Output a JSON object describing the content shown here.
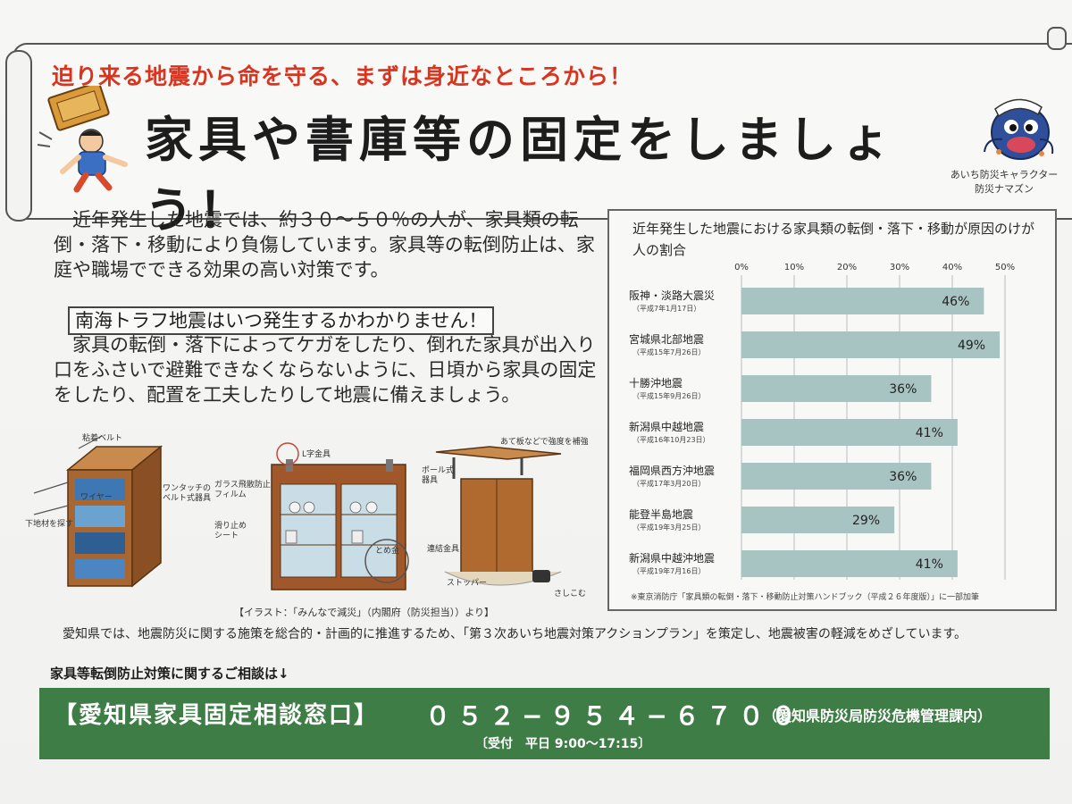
{
  "header": {
    "subtitle": "迫り来る地震から命を守る、まずは身近なところから！",
    "title": "家具や書庫等の固定をしましょう！",
    "mascot_caption_1": "あいち防災キャラクター",
    "mascot_caption_2": "防災ナマズン"
  },
  "body": {
    "para1": "近年発生した地震では、約３０〜５０％の人が、家具類の転倒・落下・移動により負傷しています。家具等の転倒防止は、家庭や職場でできる効果の高い対策です。",
    "boxed": "南海トラフ地震はいつ発生するかわかりません！",
    "para2": "家具の転倒・落下によってケガをしたり、倒れた家具が出入り口をふさいで避難できなくならないように、日頃から家具の固定をしたり、配置を工夫したりして地震に備えましょう。",
    "para3": "愛知県では、地震防災に関する施策を総合的・計画的に推進するため、「第３次あいち地震対策アクションプラン」を策定し、地震被害の軽減をめざしています。",
    "consult": "家具等転倒防止対策に関するご相談は↓"
  },
  "illustration": {
    "caption": "【イラスト：「みんなで減災」（内閣府（防災担当））より】",
    "labels": {
      "belt": "粘着ベルト",
      "wire": "ワイヤー",
      "base": "下地材を探す",
      "onetouch": "ワンタッチの\nベルト式器具",
      "lbracket": "L字金具",
      "glass": "ガラス飛散防止\nフィルム",
      "slip": "滑り止め\nシート",
      "latch": "とめ金",
      "plate": "あて板などで強度を補強",
      "pole": "ポール式\n器具",
      "link": "連結金具",
      "stopper": "ストッパー",
      "insert": "さしこむ"
    }
  },
  "chart_data": {
    "type": "bar",
    "orientation": "horizontal",
    "title": "近年発生した地震における家具類の転倒・落下・移動が原因のけが人の割合",
    "categories": [
      "阪神・淡路大震災",
      "宮城県北部地震",
      "十勝沖地震",
      "新潟県中越地震",
      "福岡県西方沖地震",
      "能登半島地震",
      "新潟県中越沖地震"
    ],
    "subcategories": [
      "（平成7年1月17日）",
      "（平成15年7月26日）",
      "（平成15年9月26日）",
      "（平成16年10月23日）",
      "（平成17年3月20日）",
      "（平成19年3月25日）",
      "（平成19年7月16日）"
    ],
    "values": [
      46,
      49,
      36,
      41,
      36,
      29,
      41
    ],
    "value_labels": [
      "46%",
      "49%",
      "36%",
      "41%",
      "36%",
      "29%",
      "41%"
    ],
    "xlim": [
      0,
      50
    ],
    "ticks": [
      "0%",
      "10%",
      "20%",
      "30%",
      "40%",
      "50%"
    ],
    "grid": true,
    "bar_color": "#a8c4c2",
    "note": "※東京消防庁「家具類の転倒・落下・移動防止対策ハンドブック（平成２６年度版）」に一部加筆"
  },
  "contact": {
    "name": "【愛知県家具固定相談窓口】",
    "phone": "０５２−９５４−６７００",
    "dept": "（愛知県防災局防災危機管理課内）",
    "hours": "〔受付　平日 9:00〜17:15〕"
  },
  "colors": {
    "accent_red": "#d9341f",
    "band_green": "#3f7d46",
    "furniture_brown": "#9a5a2a"
  }
}
